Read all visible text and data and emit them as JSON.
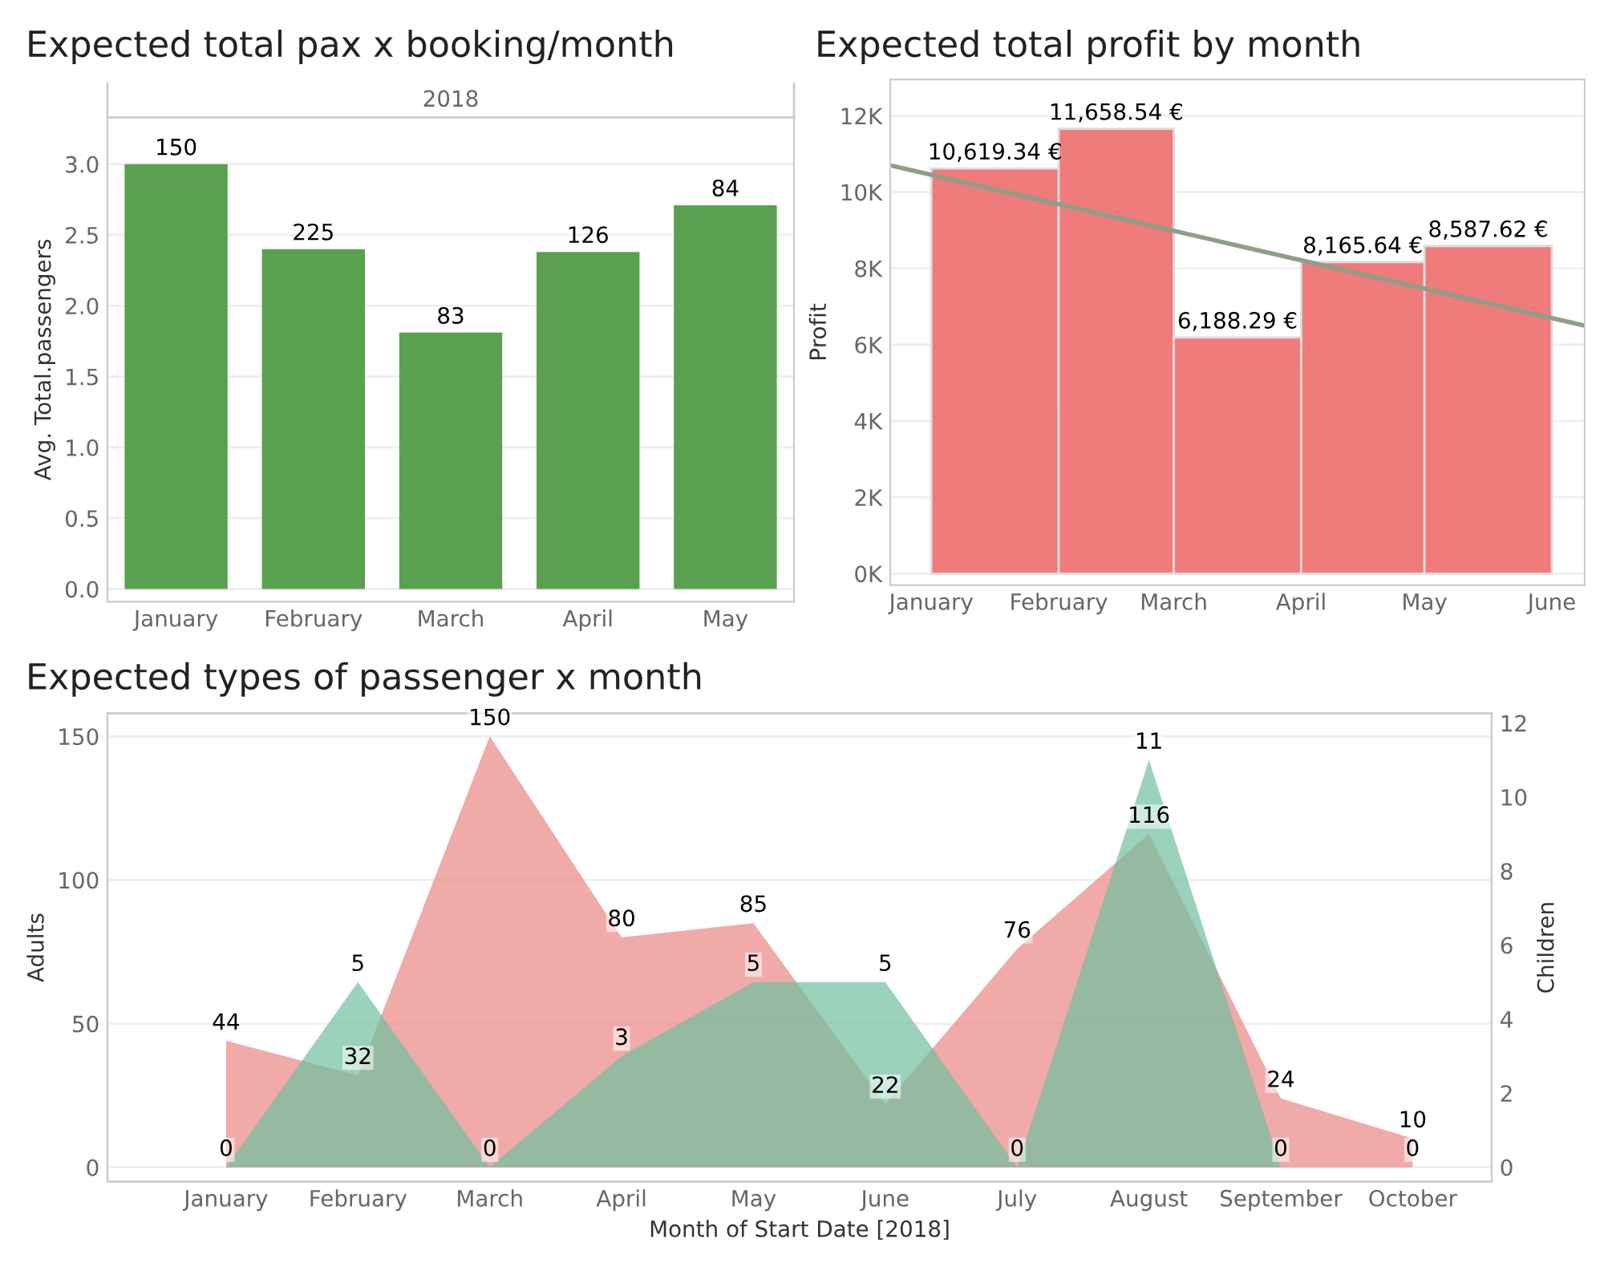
{
  "chart_data": [
    {
      "type": "bar",
      "title": "Expected total pax x booking/month",
      "ylabel": "Avg. Total.passengers",
      "annotations": [
        "2018",
        {
          "text": "150",
          "x": "January",
          "y": 3.0
        },
        {
          "text": "225",
          "x": "February",
          "y": 2.4
        },
        {
          "text": "83",
          "x": "March",
          "y": 1.81
        },
        {
          "text": "126",
          "x": "April",
          "y": 2.38
        },
        {
          "text": "84",
          "x": "May",
          "y": 2.71
        }
      ],
      "categories": [
        "January",
        "February",
        "March",
        "April",
        "May"
      ],
      "values": [
        3.0,
        2.4,
        1.81,
        2.38,
        2.71
      ],
      "color": "#59a14f",
      "ylim": [
        -0.09,
        3.33
      ],
      "yticks": [
        {
          "value": 0,
          "label": "0.0"
        },
        {
          "value": 0.5,
          "label": "0.5"
        },
        {
          "value": 1,
          "label": "1.0"
        },
        {
          "value": 1.5,
          "label": "1.5"
        },
        {
          "value": 2,
          "label": "2.0"
        },
        {
          "value": 2.5,
          "label": "2.5"
        },
        {
          "value": 3,
          "label": "3.0"
        }
      ],
      "grid": "y"
    },
    {
      "type": "bar",
      "title": "Expected total profit by month",
      "ylabel": "Profit",
      "x": [
        "2018-01-16",
        "2018-02-14",
        "2018-03-16",
        "2018-04-15",
        "2018-05-16"
      ],
      "series": [
        {
          "type": "bar",
          "color": "#f07b7b",
          "values": [
            10619.34,
            11658.54,
            6188.29,
            8165.64,
            8587.62
          ],
          "value_labels": [
            "10,619.34 €",
            "11,658.54 €",
            "6,188.29 €",
            "8,165.64 €",
            "8,587.62 €"
          ]
        },
        {
          "type": "line",
          "color": "#8f9e88",
          "x": [
            "2017-12-22",
            "2018-06-09"
          ],
          "values": [
            10700,
            6500
          ]
        }
      ],
      "xlim": [
        "2017-12-22",
        "2018-06-09"
      ],
      "xticks": [
        {
          "value": "2018-01",
          "label": "January"
        },
        {
          "value": "2018-02",
          "label": "February"
        },
        {
          "value": "2018-03",
          "label": "March"
        },
        {
          "value": "2018-04",
          "label": "April"
        },
        {
          "value": "2018-05",
          "label": "May"
        },
        {
          "value": "2018-06",
          "label": "June"
        }
      ],
      "ylim": [
        -300,
        12950
      ],
      "yticks": [
        {
          "value": 0,
          "label": "0K"
        },
        {
          "value": 2000,
          "label": "2K"
        },
        {
          "value": 4000,
          "label": "4K"
        },
        {
          "value": 6000,
          "label": "6K"
        },
        {
          "value": 8000,
          "label": "8K"
        },
        {
          "value": 10000,
          "label": "10K"
        },
        {
          "value": 12000,
          "label": "12K"
        }
      ],
      "grid": "y"
    },
    {
      "type": "area",
      "title": "Expected types of passenger x month",
      "xlabel": "Month of Start Date [2018]",
      "ylabel": "Adults",
      "y2label": "Children",
      "categories": [
        "January",
        "February",
        "March",
        "April",
        "May",
        "June",
        "July",
        "August",
        "September",
        "October"
      ],
      "series": [
        {
          "color": "#ea8682",
          "values": [
            44,
            32,
            150,
            80,
            85,
            22,
            76,
            116,
            24,
            10
          ]
        },
        {
          "color": "#6fbf9f",
          "axis": "y2",
          "values": [
            0,
            5,
            0,
            3,
            5,
            5,
            0,
            11,
            0,
            0
          ]
        }
      ],
      "data_labels": true,
      "ylim": [
        -5,
        158
      ],
      "yticks": [
        0,
        50,
        100,
        150
      ],
      "y2lim": [
        -0.39,
        12.26
      ],
      "y2ticks": [
        0,
        2,
        4,
        6,
        8,
        10,
        12
      ],
      "grid": "y"
    }
  ]
}
